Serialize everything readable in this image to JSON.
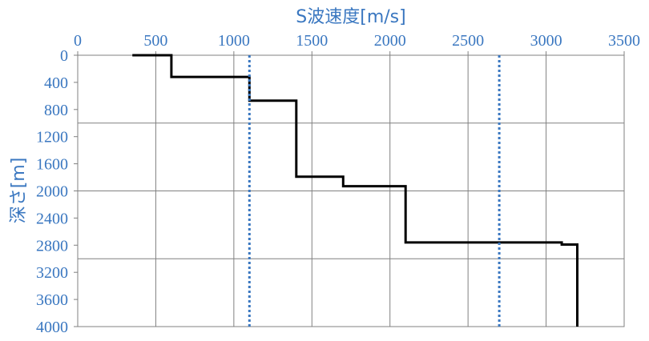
{
  "chart_data": {
    "type": "line",
    "title": "",
    "xlabel": "S波速度[m/s]",
    "ylabel": "深さ[m]",
    "x_axis_position": "top",
    "y_axis_inverted": true,
    "xlim": [
      0,
      3500
    ],
    "ylim": [
      0,
      4000
    ],
    "x_ticks": [
      0,
      500,
      1000,
      1500,
      2000,
      2500,
      3000,
      3500
    ],
    "y_ticks": [
      0,
      400,
      800,
      1200,
      1600,
      2000,
      2400,
      2800,
      3200,
      3600,
      4000
    ],
    "x_ticks_labels": [
      "0",
      "500",
      "1000",
      "1500",
      "2000",
      "2500",
      "3000",
      "3500"
    ],
    "y_ticks_labels": [
      "0",
      "400",
      "800",
      "1200",
      "1600",
      "2000",
      "2400",
      "2800",
      "3200",
      "3600",
      "4000"
    ],
    "vertical_gridlines": [
      500,
      1000,
      1500,
      2000,
      2500,
      3000,
      3500
    ],
    "horizontal_gridlines": [
      1000,
      2000,
      3000,
      4000
    ],
    "series": [
      {
        "style": "solid",
        "color": "#000000",
        "points": [
          [
            350,
            0
          ],
          [
            600,
            0
          ],
          [
            600,
            320
          ],
          [
            1100,
            320
          ],
          [
            1100,
            670
          ],
          [
            1400,
            670
          ],
          [
            1400,
            1790
          ],
          [
            1700,
            1790
          ],
          [
            1700,
            1930
          ],
          [
            2100,
            1930
          ],
          [
            2100,
            2760
          ],
          [
            3100,
            2760
          ],
          [
            3100,
            2790
          ],
          [
            3200,
            2790
          ],
          [
            3200,
            4000
          ]
        ]
      },
      {
        "style": "dotted",
        "color": "#3a77c0",
        "points": [
          [
            1100,
            0
          ],
          [
            1100,
            4000
          ]
        ]
      },
      {
        "style": "dotted",
        "color": "#3a77c0",
        "points": [
          [
            2700,
            0
          ],
          [
            2700,
            4000
          ]
        ]
      }
    ],
    "colors": {
      "axis_text": "#3a77c0",
      "grid": "#808080",
      "frame": "#808080"
    }
  }
}
